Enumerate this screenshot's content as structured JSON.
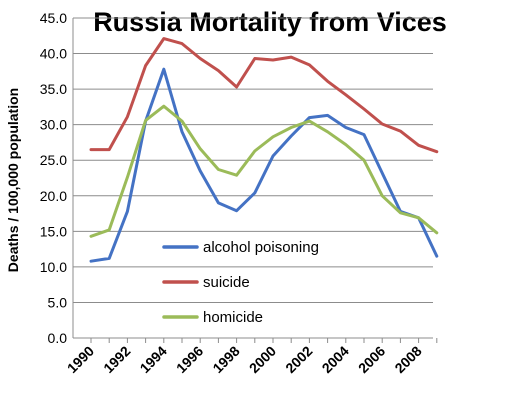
{
  "chart_data": {
    "type": "line",
    "title": "Russia Mortality from Vices",
    "xlabel": "",
    "ylabel": "Deaths / 100,000 population",
    "ylim": [
      0,
      45
    ],
    "yticks": [
      "0.0",
      "5.0",
      "10.0",
      "15.0",
      "20.0",
      "25.0",
      "30.0",
      "35.0",
      "40.0",
      "45.0"
    ],
    "xticks": [
      "1990",
      "1992",
      "1994",
      "1996",
      "1998",
      "2000",
      "2002",
      "2004",
      "2006",
      "2008"
    ],
    "grid": "horizontal",
    "legend_position": "center-bottom",
    "x": [
      1990,
      1991,
      1992,
      1993,
      1994,
      1995,
      1996,
      1997,
      1998,
      1999,
      2000,
      2001,
      2002,
      2003,
      2004,
      2005,
      2006,
      2007,
      2008,
      2009
    ],
    "series": [
      {
        "name": "alcohol poisoning",
        "color": "#4472C4",
        "values": [
          10.8,
          11.2,
          17.8,
          30.5,
          37.8,
          29.0,
          23.5,
          19.0,
          17.9,
          20.4,
          25.6,
          28.4,
          31.0,
          31.3,
          29.6,
          28.6,
          23.2,
          17.8,
          16.9,
          11.5
        ]
      },
      {
        "name": "suicide",
        "color": "#C0504D",
        "values": [
          26.5,
          26.5,
          31.1,
          38.3,
          42.1,
          41.4,
          39.3,
          37.6,
          35.3,
          39.3,
          39.1,
          39.5,
          38.4,
          36.1,
          34.2,
          32.2,
          30.1,
          29.1,
          27.1,
          26.2
        ]
      },
      {
        "name": "homicide",
        "color": "#9BBB59",
        "values": [
          14.3,
          15.2,
          22.6,
          30.6,
          32.6,
          30.5,
          26.6,
          23.7,
          22.9,
          26.3,
          28.3,
          29.6,
          30.5,
          29.0,
          27.2,
          25.0,
          20.0,
          17.6,
          16.9,
          14.8
        ]
      }
    ]
  }
}
